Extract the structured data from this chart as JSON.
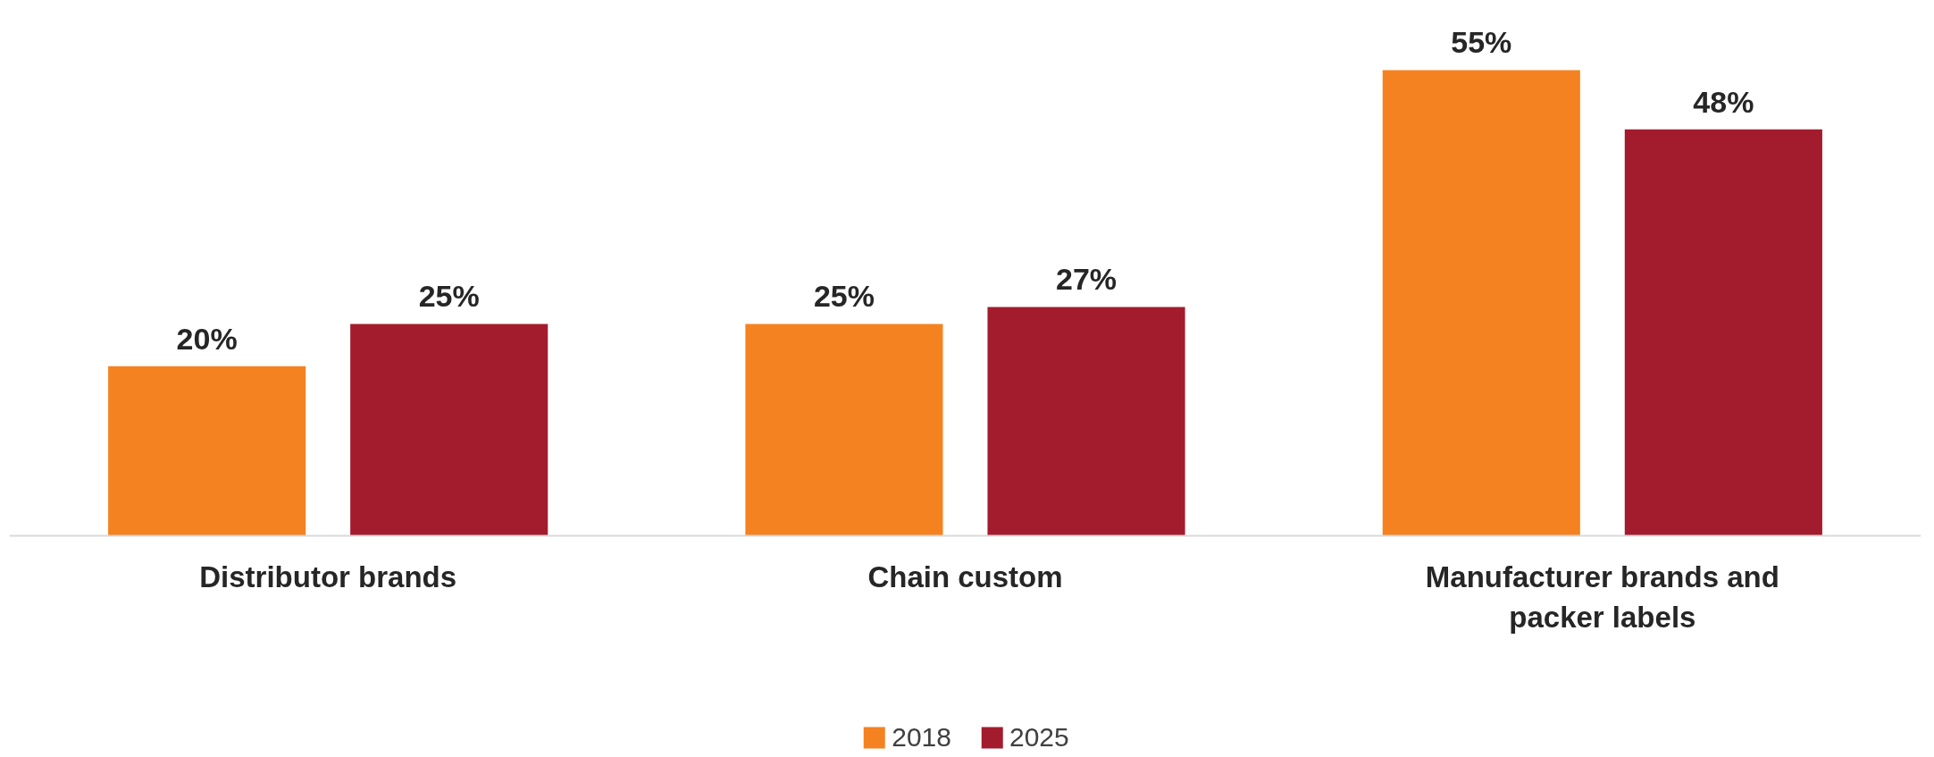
{
  "chart_data": {
    "type": "bar",
    "categories": [
      "Distributor brands",
      "Chain custom",
      "Manufacturer brands and packer labels"
    ],
    "series": [
      {
        "name": "2018",
        "color": "#f58220",
        "values": [
          20,
          25,
          55
        ],
        "value_labels": [
          "20%",
          "25%",
          "55%"
        ]
      },
      {
        "name": "2025",
        "color": "#a31c2e",
        "values": [
          25,
          27,
          48
        ],
        "value_labels": [
          "25%",
          "27%",
          "48%"
        ]
      }
    ],
    "legend": "bottom",
    "grid": false
  }
}
